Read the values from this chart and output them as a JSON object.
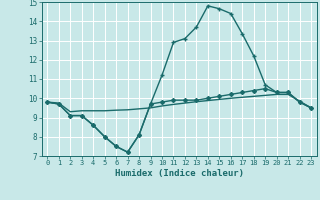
{
  "xlabel": "Humidex (Indice chaleur)",
  "xlim": [
    -0.5,
    23.5
  ],
  "ylim": [
    7,
    15
  ],
  "yticks": [
    7,
    8,
    9,
    10,
    11,
    12,
    13,
    14,
    15
  ],
  "xticks": [
    0,
    1,
    2,
    3,
    4,
    5,
    6,
    7,
    8,
    9,
    10,
    11,
    12,
    13,
    14,
    15,
    16,
    17,
    18,
    19,
    20,
    21,
    22,
    23
  ],
  "bg_color": "#c8e8e8",
  "line_color": "#1a6b6b",
  "grid_color": "#b0d8d8",
  "lines": [
    {
      "x": [
        0,
        1,
        2,
        3,
        4,
        5,
        6,
        7,
        8,
        9,
        10,
        11,
        12,
        13,
        14,
        15,
        16,
        17,
        18,
        19,
        20,
        21,
        22,
        23
      ],
      "y": [
        9.8,
        9.7,
        9.1,
        9.1,
        8.6,
        8.0,
        7.5,
        7.2,
        8.1,
        9.7,
        9.8,
        9.9,
        9.9,
        9.9,
        10.0,
        10.1,
        10.2,
        10.3,
        10.4,
        10.5,
        10.3,
        10.3,
        9.8,
        9.5
      ],
      "marker": "D",
      "markersize": 2.0,
      "linewidth": 1.0
    },
    {
      "x": [
        0,
        1,
        2,
        3,
        4,
        5,
        6,
        7,
        8,
        9,
        10,
        11,
        12,
        13,
        14,
        15,
        16,
        17,
        18,
        19,
        20,
        21,
        22,
        23
      ],
      "y": [
        9.8,
        9.7,
        9.1,
        9.1,
        8.6,
        8.0,
        7.5,
        7.2,
        8.1,
        9.7,
        11.2,
        12.9,
        13.1,
        13.7,
        14.8,
        14.65,
        14.4,
        13.35,
        12.2,
        10.7,
        10.3,
        10.3,
        9.8,
        9.5
      ],
      "marker": "+",
      "markersize": 3.5,
      "linewidth": 1.0
    },
    {
      "x": [
        0,
        1,
        2,
        3,
        4,
        5,
        6,
        7,
        8,
        9,
        10,
        11,
        12,
        13,
        14,
        15,
        16,
        17,
        18,
        19,
        20,
        21,
        22,
        23
      ],
      "y": [
        9.8,
        9.75,
        9.3,
        9.35,
        9.35,
        9.35,
        9.38,
        9.4,
        9.45,
        9.5,
        9.6,
        9.68,
        9.75,
        9.82,
        9.88,
        9.94,
        10.0,
        10.05,
        10.1,
        10.15,
        10.2,
        10.2,
        9.85,
        9.5
      ],
      "marker": null,
      "markersize": 0,
      "linewidth": 1.0
    }
  ]
}
